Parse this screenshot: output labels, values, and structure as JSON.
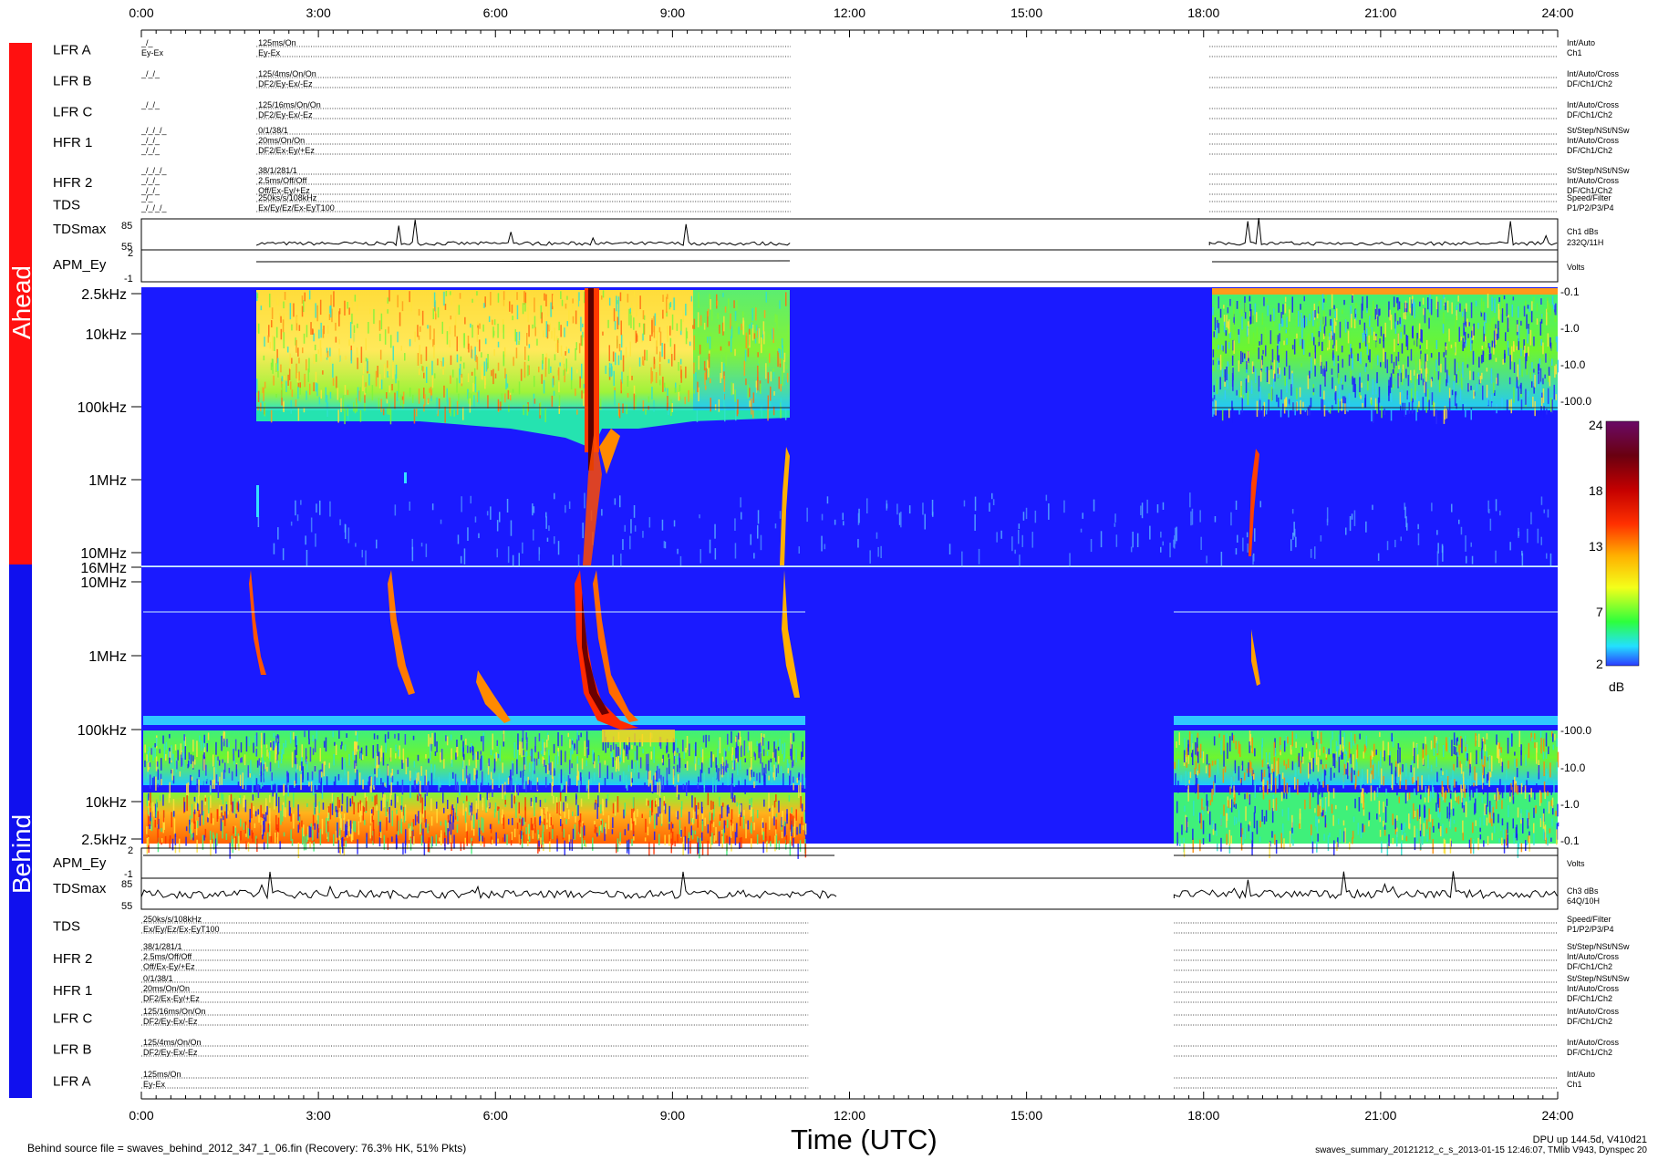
{
  "chart_data": {
    "type": "heatmap",
    "xlabel": "Time (UTC)",
    "x_ticks": [
      "0:00",
      "3:00",
      "6:00",
      "9:00",
      "12:00",
      "15:00",
      "18:00",
      "21:00",
      "24:00"
    ],
    "xlim_hours": [
      0,
      24
    ],
    "panels": {
      "ahead_label": "Ahead",
      "behind_label": "Behind",
      "ahead_spectrogram_yticks": [
        "2.5kHz",
        "10kHz",
        "100kHz",
        "1MHz",
        "10MHz",
        "16MHz"
      ],
      "behind_spectrogram_yticks": [
        "10MHz",
        "1MHz",
        "100kHz",
        "10kHz",
        "2.5kHz"
      ],
      "right_scale_ahead": [
        "-0.1",
        "-1.0",
        "-10.0",
        "-100.0"
      ],
      "right_scale_behind": [
        "-100.0",
        "-10.0",
        "-1.0",
        "-0.1"
      ],
      "data_coverage_hours": {
        "ahead": [
          [
            1.95,
            11.0
          ],
          [
            18.1,
            24.0
          ]
        ],
        "behind": [
          [
            0.0,
            11.3
          ],
          [
            17.5,
            24.0
          ]
        ]
      }
    },
    "colorbar": {
      "ticks": [
        "24",
        "18",
        "13",
        "7",
        "2"
      ],
      "unit": "dB",
      "range": [
        2,
        24
      ]
    },
    "ahead_rows": [
      {
        "label": "LFR A",
        "lines": [
          "_/_",
          "Ey-Ex"
        ],
        "text": [
          "125ms/On",
          "Ey-Ex"
        ],
        "right": [
          "Int/Auto",
          "Ch1"
        ]
      },
      {
        "label": "LFR B",
        "lines": [
          "_/_/_"
        ],
        "text": [
          "125/4ms/On/On",
          "DF2/Ey-Ex/-Ez"
        ],
        "right": [
          "Int/Auto/Cross",
          "DF/Ch1/Ch2"
        ]
      },
      {
        "label": "LFR C",
        "lines": [
          "_/_/_"
        ],
        "text": [
          "125/16ms/On/On",
          "DF2/Ey-Ex/-Ez"
        ],
        "right": [
          "Int/Auto/Cross",
          "DF/Ch1/Ch2"
        ]
      },
      {
        "label": "HFR 1",
        "lines": [
          "_/_/_/_",
          "_/_/_",
          "_/_/_"
        ],
        "text": [
          "0/1/38/1",
          "20ms/On/On",
          "DF2/Ex-Ey/+Ez"
        ],
        "right": [
          "St/Step/NSt/NSw",
          "Int/Auto/Cross",
          "DF/Ch1/Ch2"
        ]
      },
      {
        "label": "HFR 2",
        "lines": [
          "_/_/_/_",
          "_/_/_",
          "_/_/_"
        ],
        "text": [
          "38/1/281/1",
          "2.5ms/Off/Off",
          "Off/Ex-Ey/+Ez"
        ],
        "right": [
          "St/Step/NSt/NSw",
          "Int/Auto/Cross",
          "DF/Ch1/Ch2"
        ]
      },
      {
        "label": "TDS",
        "lines": [
          "_/_",
          "_/_/_/_"
        ],
        "text": [
          "250ks/s/108kHz",
          "Ex/Ey/Ez/Ex-EyT100"
        ],
        "right": [
          "Speed/Filter",
          "P1/P2/P3/P4"
        ]
      }
    ],
    "ahead_tdsmax": {
      "label": "TDSmax",
      "yticks": [
        "85",
        "55"
      ],
      "right": [
        "Ch1 dBs",
        "232Q/11H"
      ]
    },
    "ahead_apm": {
      "label": "APM_Ey",
      "yticks": [
        "2",
        "-1"
      ],
      "right": [
        "Volts"
      ]
    },
    "behind_apm": {
      "label": "APM_Ey",
      "yticks": [
        "2",
        "-1"
      ],
      "right": [
        "Volts"
      ]
    },
    "behind_tdsmax": {
      "label": "TDSmax",
      "yticks": [
        "85",
        "55"
      ],
      "right": [
        "Ch3 dBs",
        "64Q/10H"
      ]
    },
    "behind_rows": [
      {
        "label": "TDS",
        "text": [
          "250ks/s/108kHz",
          "Ex/Ey/Ez/Ex-EyT100"
        ],
        "right": [
          "Speed/Filter",
          "P1/P2/P3/P4"
        ]
      },
      {
        "label": "HFR 2",
        "text": [
          "38/1/281/1",
          "2.5ms/Off/Off",
          "Off/Ex-Ey/+Ez"
        ],
        "right": [
          "St/Step/NSt/NSw",
          "Int/Auto/Cross",
          "DF/Ch1/Ch2"
        ]
      },
      {
        "label": "HFR 1",
        "text": [
          "0/1/38/1",
          "20ms/On/On",
          "DF2/Ex-Ey/+Ez"
        ],
        "right": [
          "St/Step/NSt/NSw",
          "Int/Auto/Cross",
          "DF/Ch1/Ch2"
        ]
      },
      {
        "label": "LFR C",
        "text": [
          "125/16ms/On/On",
          "DF2/Ey-Ex/-Ez"
        ],
        "right": [
          "Int/Auto/Cross",
          "DF/Ch1/Ch2"
        ]
      },
      {
        "label": "LFR B",
        "text": [
          "125/4ms/On/On",
          "DF2/Ey-Ex/-Ez"
        ],
        "right": [
          "Int/Auto/Cross",
          "DF/Ch1/Ch2"
        ]
      },
      {
        "label": "LFR A",
        "text": [
          "125ms/On",
          "Ey-Ex"
        ],
        "right": [
          "Int/Auto",
          "Ch1"
        ]
      }
    ]
  },
  "footer": {
    "left": "Behind source file = swaves_behind_2012_347_1_06.fin (Recovery: 76.3% HK, 51% Pkts)",
    "right_line1": "DPU up 144.5d, V410d21",
    "right_line2": "swaves_summary_20121212_c_s_2013-01-15 12:46:07, TMlib V943, Dynspec 20"
  },
  "colors": {
    "ahead_bar": "#ff1010",
    "behind_bar": "#1010ee",
    "background": "#1a1aff",
    "bright": "#ffd21c",
    "intense": "#ff2a00"
  }
}
